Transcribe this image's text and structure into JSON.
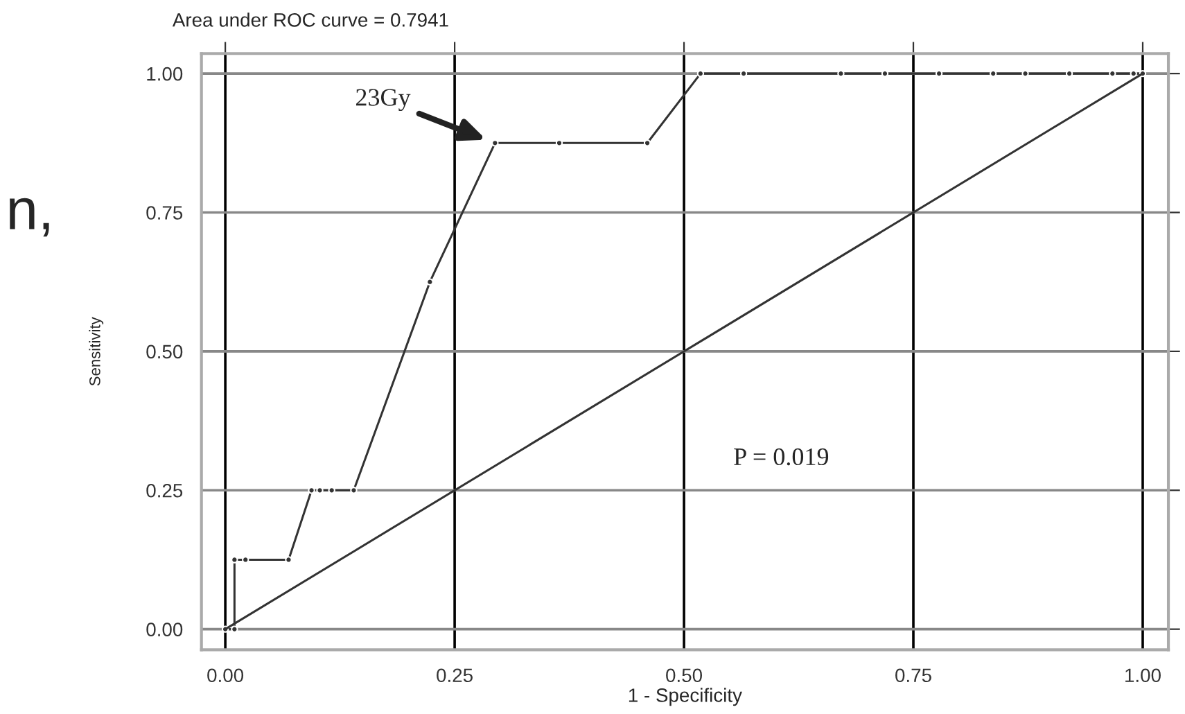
{
  "chart_data": {
    "type": "line",
    "title": "Area under ROC curve = 0.7941",
    "xlabel": "1 - Specificity",
    "ylabel": "Sensitivity",
    "annotations": [
      "23Gy",
      "P = 0.019",
      "n,"
    ],
    "series": [
      {
        "color": "#333333",
        "marker": "circle",
        "x": [
          0,
          0.01,
          0.01,
          0.022,
          0.069,
          0.094,
          0.103,
          0.116,
          0.14,
          0.223,
          0.294,
          0.364,
          0.46,
          0.518,
          0.565,
          0.671,
          0.719,
          0.778,
          0.837,
          0.872,
          0.92,
          0.967,
          0.99,
          1.0
        ],
        "values": [
          0,
          0,
          0.125,
          0.125,
          0.125,
          0.25,
          0.25,
          0.25,
          0.25,
          0.625,
          0.875,
          0.875,
          0.875,
          1.0,
          1.0,
          1.0,
          1.0,
          1.0,
          1.0,
          1.0,
          1.0,
          1.0,
          1.0,
          1.0
        ]
      },
      {
        "color": "#333333",
        "marker": "none",
        "x": [
          0,
          1
        ],
        "values": [
          0,
          1
        ]
      }
    ],
    "xlim": [
      -0.026,
      1.028
    ],
    "ylim": [
      -0.037,
      1.036
    ],
    "xticks": [
      {
        "value": 0,
        "label": "0.00"
      },
      0.25,
      {
        "value": 0.5,
        "label": "0.50"
      },
      0.75,
      {
        "value": 1,
        "label": "1.00"
      }
    ],
    "yticks": [
      {
        "value": 0,
        "label": "0.00"
      },
      0.25,
      {
        "value": 0.5,
        "label": "0.50"
      },
      0.75,
      {
        "value": 1,
        "label": "1.00"
      }
    ],
    "grid": true,
    "legend": false,
    "line_style": "solid"
  }
}
